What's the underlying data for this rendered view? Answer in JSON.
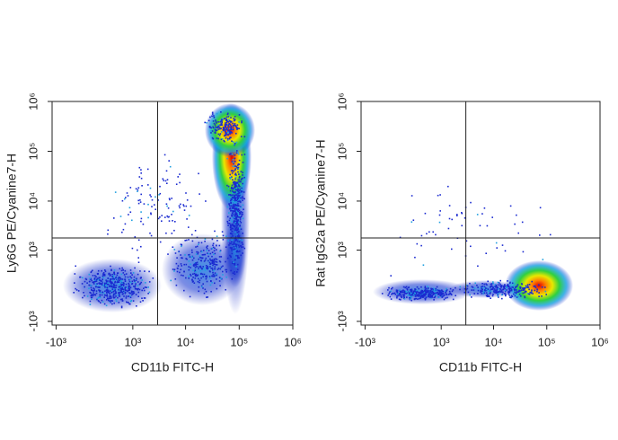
{
  "chart_data": [
    {
      "type": "density",
      "x_label": "CD11b FITC-H",
      "y_label": "Ly6G PE/Cyanine7-H",
      "scale": "biexponential",
      "xlim": [
        -1200,
        1000000
      ],
      "ylim": [
        -1200,
        1000000
      ],
      "xticks": [
        {
          "value": -1000,
          "label": "-10³"
        },
        {
          "value": 1000,
          "label": "10³"
        },
        {
          "value": 10000,
          "label": "10⁴"
        },
        {
          "value": 100000,
          "label": "10⁵"
        },
        {
          "value": 1000000,
          "label": "10⁶"
        }
      ],
      "yticks": [
        {
          "value": -1000,
          "label": "-10³"
        },
        {
          "value": 1000,
          "label": "10³"
        },
        {
          "value": 10000,
          "label": "10⁴"
        },
        {
          "value": 100000,
          "label": "10⁵"
        },
        {
          "value": 1000000,
          "label": "10⁶"
        }
      ],
      "x_gate": 3000,
      "y_gate": 1800
    },
    {
      "type": "density",
      "x_label": "CD11b FITC-H",
      "y_label": "Rat IgG2a PE/Cyanine7-H",
      "scale": "biexponential",
      "xlim": [
        -1200,
        1000000
      ],
      "ylim": [
        -1200,
        1000000
      ],
      "xticks": [
        {
          "value": -1000,
          "label": "-10³"
        },
        {
          "value": 1000,
          "label": "10³"
        },
        {
          "value": 10000,
          "label": "10⁴"
        },
        {
          "value": 100000,
          "label": "10⁵"
        },
        {
          "value": 1000000,
          "label": "10⁶"
        }
      ],
      "yticks": [
        {
          "value": -1000,
          "label": "-10³"
        },
        {
          "value": 1000,
          "label": "10³"
        },
        {
          "value": 10000,
          "label": "10⁴"
        },
        {
          "value": 100000,
          "label": "10⁵"
        },
        {
          "value": 1000000,
          "label": "10⁶"
        }
      ],
      "x_gate": 3000,
      "y_gate": 1800
    }
  ]
}
